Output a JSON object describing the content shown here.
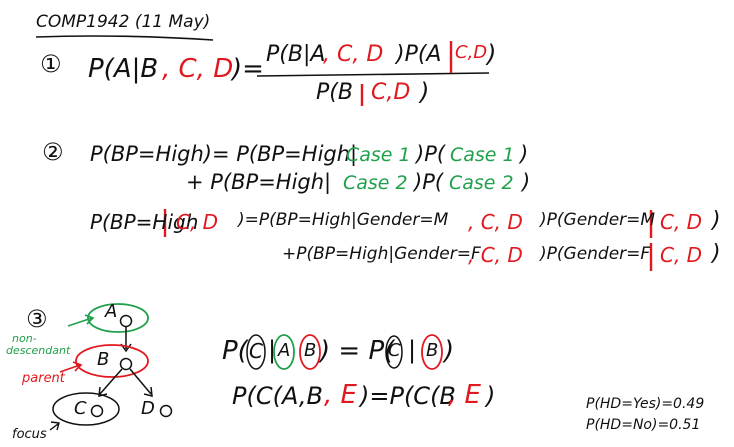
{
  "colors": {
    "ink": "#111111",
    "red": "#e0191f",
    "green": "#20a04a"
  },
  "header": {
    "title": "COMP1942 (11 May)"
  },
  "section1": {
    "number": "①",
    "lhs_a": "P(A|B",
    "lhs_b": ", C, D",
    "lhs_c": ")=",
    "num_a": "P(B|A",
    "num_b": ", C, D",
    "num_c": ")P(A",
    "num_d": "C,D",
    "num_e": ")",
    "den_a": "P(B",
    "den_b": "C,D",
    "den_c": ")"
  },
  "section2": {
    "number": "②",
    "line1_a": "P(BP=High)= P(BP=High|",
    "line1_b": "Case 1",
    "line1_c": ")P(",
    "line1_d": "Case 1",
    "line1_e": ")",
    "line2_a": "+ P(BP=High|",
    "line2_b": "Case 2",
    "line2_c": ")P(",
    "line2_d": "Case 2",
    "line2_e": ")",
    "line3_a": "P(BP=High",
    "line3_b": "C, D",
    "line3_c": ")=P(BP=High|Gender=M",
    "line3_d": ", C, D",
    "line3_e": ")P(Gender=M",
    "line3_f": "C, D",
    "line3_g": ")",
    "line4_a": "+P(BP=High|Gender=F",
    "line4_b": ", C, D",
    "line4_c": ")P(Gender=F",
    "line4_d": "C, D",
    "line4_e": ")"
  },
  "section3": {
    "number": "③",
    "label_nondesc_1": "non-",
    "label_nondesc_2": "descendant",
    "label_parent": "parent",
    "label_focus": "focus",
    "node_a": "A",
    "node_b": "B",
    "node_c": "C",
    "node_d": "D",
    "eq1_a": "P(",
    "eq1_c": "C",
    "eq1_bar1": "|",
    "eq1_avar": "A",
    "eq1_bvar": "B",
    "eq1_mid": ") = P(",
    "eq1_c2": "C",
    "eq1_bar2": "|",
    "eq1_b2": "B",
    "eq1_end": ")",
    "eq2_a": "P(C(A,B",
    "eq2_b": ", E",
    "eq2_c": ")=P(C(B",
    "eq2_d": ", E",
    "eq2_e": ")",
    "prob_yes": "P(HD=Yes)=0.49",
    "prob_no": "P(HD=No)=0.51"
  }
}
